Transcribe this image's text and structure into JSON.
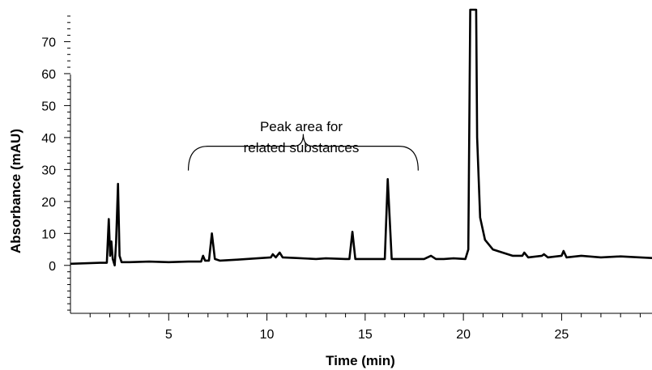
{
  "chart_data": {
    "type": "line",
    "title": "",
    "xlabel": "Time (min)",
    "ylabel": "Absorbance (mAU)",
    "xlim": [
      0,
      29.6
    ],
    "ylim": [
      -15,
      80
    ],
    "x_ticks": [
      5,
      10,
      15,
      20,
      25
    ],
    "y_ticks": [
      0,
      10,
      20,
      30,
      40,
      50,
      60,
      70
    ],
    "grid": false,
    "legend": "none",
    "line_color": "#000000",
    "annotation": {
      "lines": [
        "Peak area for",
        "related substances"
      ],
      "bracket_range": [
        6.0,
        17.7
      ],
      "bracket_y": 35
    },
    "series": [
      {
        "values_xy": [
          [
            0,
            0.5
          ],
          [
            1.5,
            0.8
          ],
          [
            1.85,
            0.8
          ],
          [
            1.95,
            14.5
          ],
          [
            2.02,
            3
          ],
          [
            2.08,
            7.5
          ],
          [
            2.15,
            2
          ],
          [
            2.25,
            0
          ],
          [
            2.32,
            7
          ],
          [
            2.42,
            25.5
          ],
          [
            2.5,
            3
          ],
          [
            2.6,
            1
          ],
          [
            3,
            1
          ],
          [
            4,
            1.2
          ],
          [
            5,
            1
          ],
          [
            6,
            1.2
          ],
          [
            6.65,
            1.2
          ],
          [
            6.75,
            3
          ],
          [
            6.85,
            1.5
          ],
          [
            7.05,
            1.5
          ],
          [
            7.2,
            10
          ],
          [
            7.35,
            2
          ],
          [
            7.6,
            1.5
          ],
          [
            8.5,
            1.8
          ],
          [
            9.5,
            2.2
          ],
          [
            10.2,
            2.5
          ],
          [
            10.3,
            3.5
          ],
          [
            10.45,
            2.5
          ],
          [
            10.65,
            4
          ],
          [
            10.8,
            2.5
          ],
          [
            11.5,
            2.3
          ],
          [
            12.5,
            2
          ],
          [
            13,
            2.2
          ],
          [
            14,
            2
          ],
          [
            14.2,
            2
          ],
          [
            14.35,
            10.5
          ],
          [
            14.5,
            2
          ],
          [
            15,
            2
          ],
          [
            16,
            2
          ],
          [
            16.15,
            27
          ],
          [
            16.35,
            2
          ],
          [
            17,
            2
          ],
          [
            18,
            2
          ],
          [
            18.35,
            3
          ],
          [
            18.6,
            2
          ],
          [
            19,
            2
          ],
          [
            19.5,
            2.2
          ],
          [
            20.1,
            2
          ],
          [
            20.25,
            5
          ],
          [
            20.35,
            80
          ],
          [
            20.65,
            80
          ],
          [
            20.7,
            40
          ],
          [
            20.85,
            15
          ],
          [
            21.1,
            8
          ],
          [
            21.5,
            5
          ],
          [
            22,
            4
          ],
          [
            22.5,
            3
          ],
          [
            23,
            3
          ],
          [
            23.1,
            4
          ],
          [
            23.3,
            2.5
          ],
          [
            24,
            3
          ],
          [
            24.1,
            3.5
          ],
          [
            24.3,
            2.5
          ],
          [
            25,
            3
          ],
          [
            25.1,
            4.5
          ],
          [
            25.25,
            2.5
          ],
          [
            26,
            3
          ],
          [
            27,
            2.5
          ],
          [
            28,
            2.8
          ],
          [
            29,
            2.5
          ],
          [
            29.6,
            2.3
          ]
        ]
      }
    ]
  }
}
